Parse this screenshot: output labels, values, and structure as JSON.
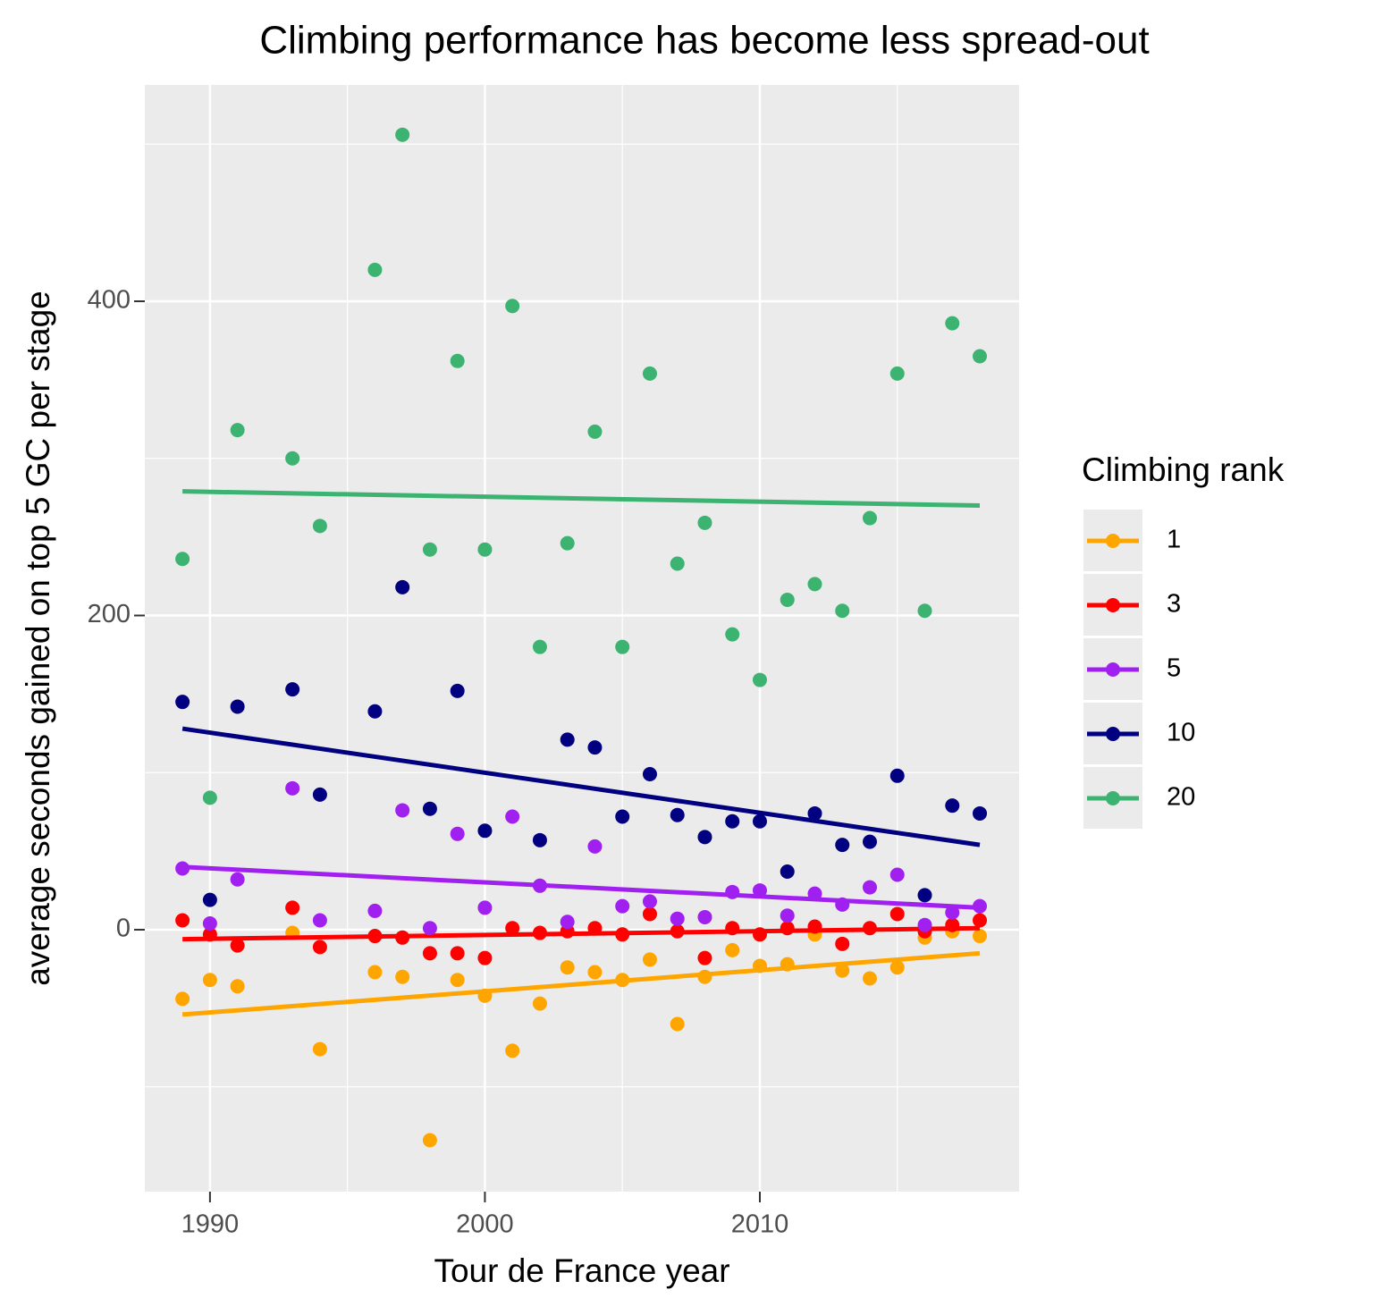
{
  "chart_data": {
    "type": "scatter",
    "title": "Climbing performance has become less spread-out",
    "x_label": "Tour de France year",
    "y_label": "average seconds gained on top 5 GC per stage",
    "legend_title": "Climbing rank",
    "legend_position": "right",
    "grid": true,
    "xlim": [
      1987.63,
      2019.43
    ],
    "xticks": [
      1990,
      2000,
      2010
    ],
    "ylim": [
      -166.7,
      537.7
    ],
    "yticks": [
      0,
      200,
      400
    ],
    "x": [
      1989,
      1990,
      1991,
      1993,
      1994,
      1996,
      1997,
      1998,
      1999,
      2000,
      2001,
      2002,
      2003,
      2004,
      2005,
      2006,
      2007,
      2008,
      2009,
      2010,
      2011,
      2012,
      2013,
      2014,
      2015,
      2016,
      2017,
      2018
    ],
    "trend_x": [
      1989,
      2018
    ],
    "series": [
      {
        "name": "1",
        "color": "#FFA500",
        "values": [
          -44,
          -32,
          -36,
          -2,
          -76,
          -27,
          -30,
          -134,
          -32,
          -42,
          -77,
          -47,
          -24,
          -27,
          -32,
          -19,
          -60,
          -30,
          -13,
          -23,
          -22,
          -3,
          -26,
          -31,
          -24,
          -5,
          -1,
          -4
        ],
        "trend": [
          -54,
          -15
        ]
      },
      {
        "name": "3",
        "color": "#FF0000",
        "values": [
          6,
          -3,
          -10,
          14,
          -11,
          -4,
          -5,
          -15,
          -15,
          -18,
          1,
          -2,
          -1,
          1,
          -3,
          10,
          -1,
          -18,
          1,
          -3,
          1,
          2,
          -9,
          1,
          10,
          -1,
          3,
          6
        ],
        "trend": [
          -6,
          1
        ]
      },
      {
        "name": "5",
        "color": "#A020F0",
        "values": [
          39,
          4,
          32,
          90,
          6,
          12,
          76,
          1,
          61,
          14,
          72,
          28,
          5,
          53,
          15,
          18,
          7,
          8,
          24,
          25,
          9,
          23,
          16,
          27,
          35,
          3,
          11,
          15
        ],
        "trend": [
          40,
          14
        ]
      },
      {
        "name": "10",
        "color": "#000080",
        "values": [
          145,
          19,
          142,
          153,
          86,
          139,
          218,
          77,
          152,
          63,
          null,
          57,
          121,
          116,
          72,
          99,
          73,
          59,
          69,
          69,
          37,
          74,
          54,
          56,
          98,
          22,
          79,
          74
        ],
        "trend": [
          128,
          54
        ]
      },
      {
        "name": "20",
        "color": "#3CB371",
        "values": [
          236,
          84,
          318,
          300,
          257,
          420,
          506,
          242,
          362,
          242,
          397,
          180,
          246,
          317,
          180,
          354,
          233,
          259,
          188,
          159,
          210,
          220,
          203,
          262,
          354,
          203,
          386,
          365
        ],
        "trend": [
          279,
          270
        ]
      }
    ]
  }
}
